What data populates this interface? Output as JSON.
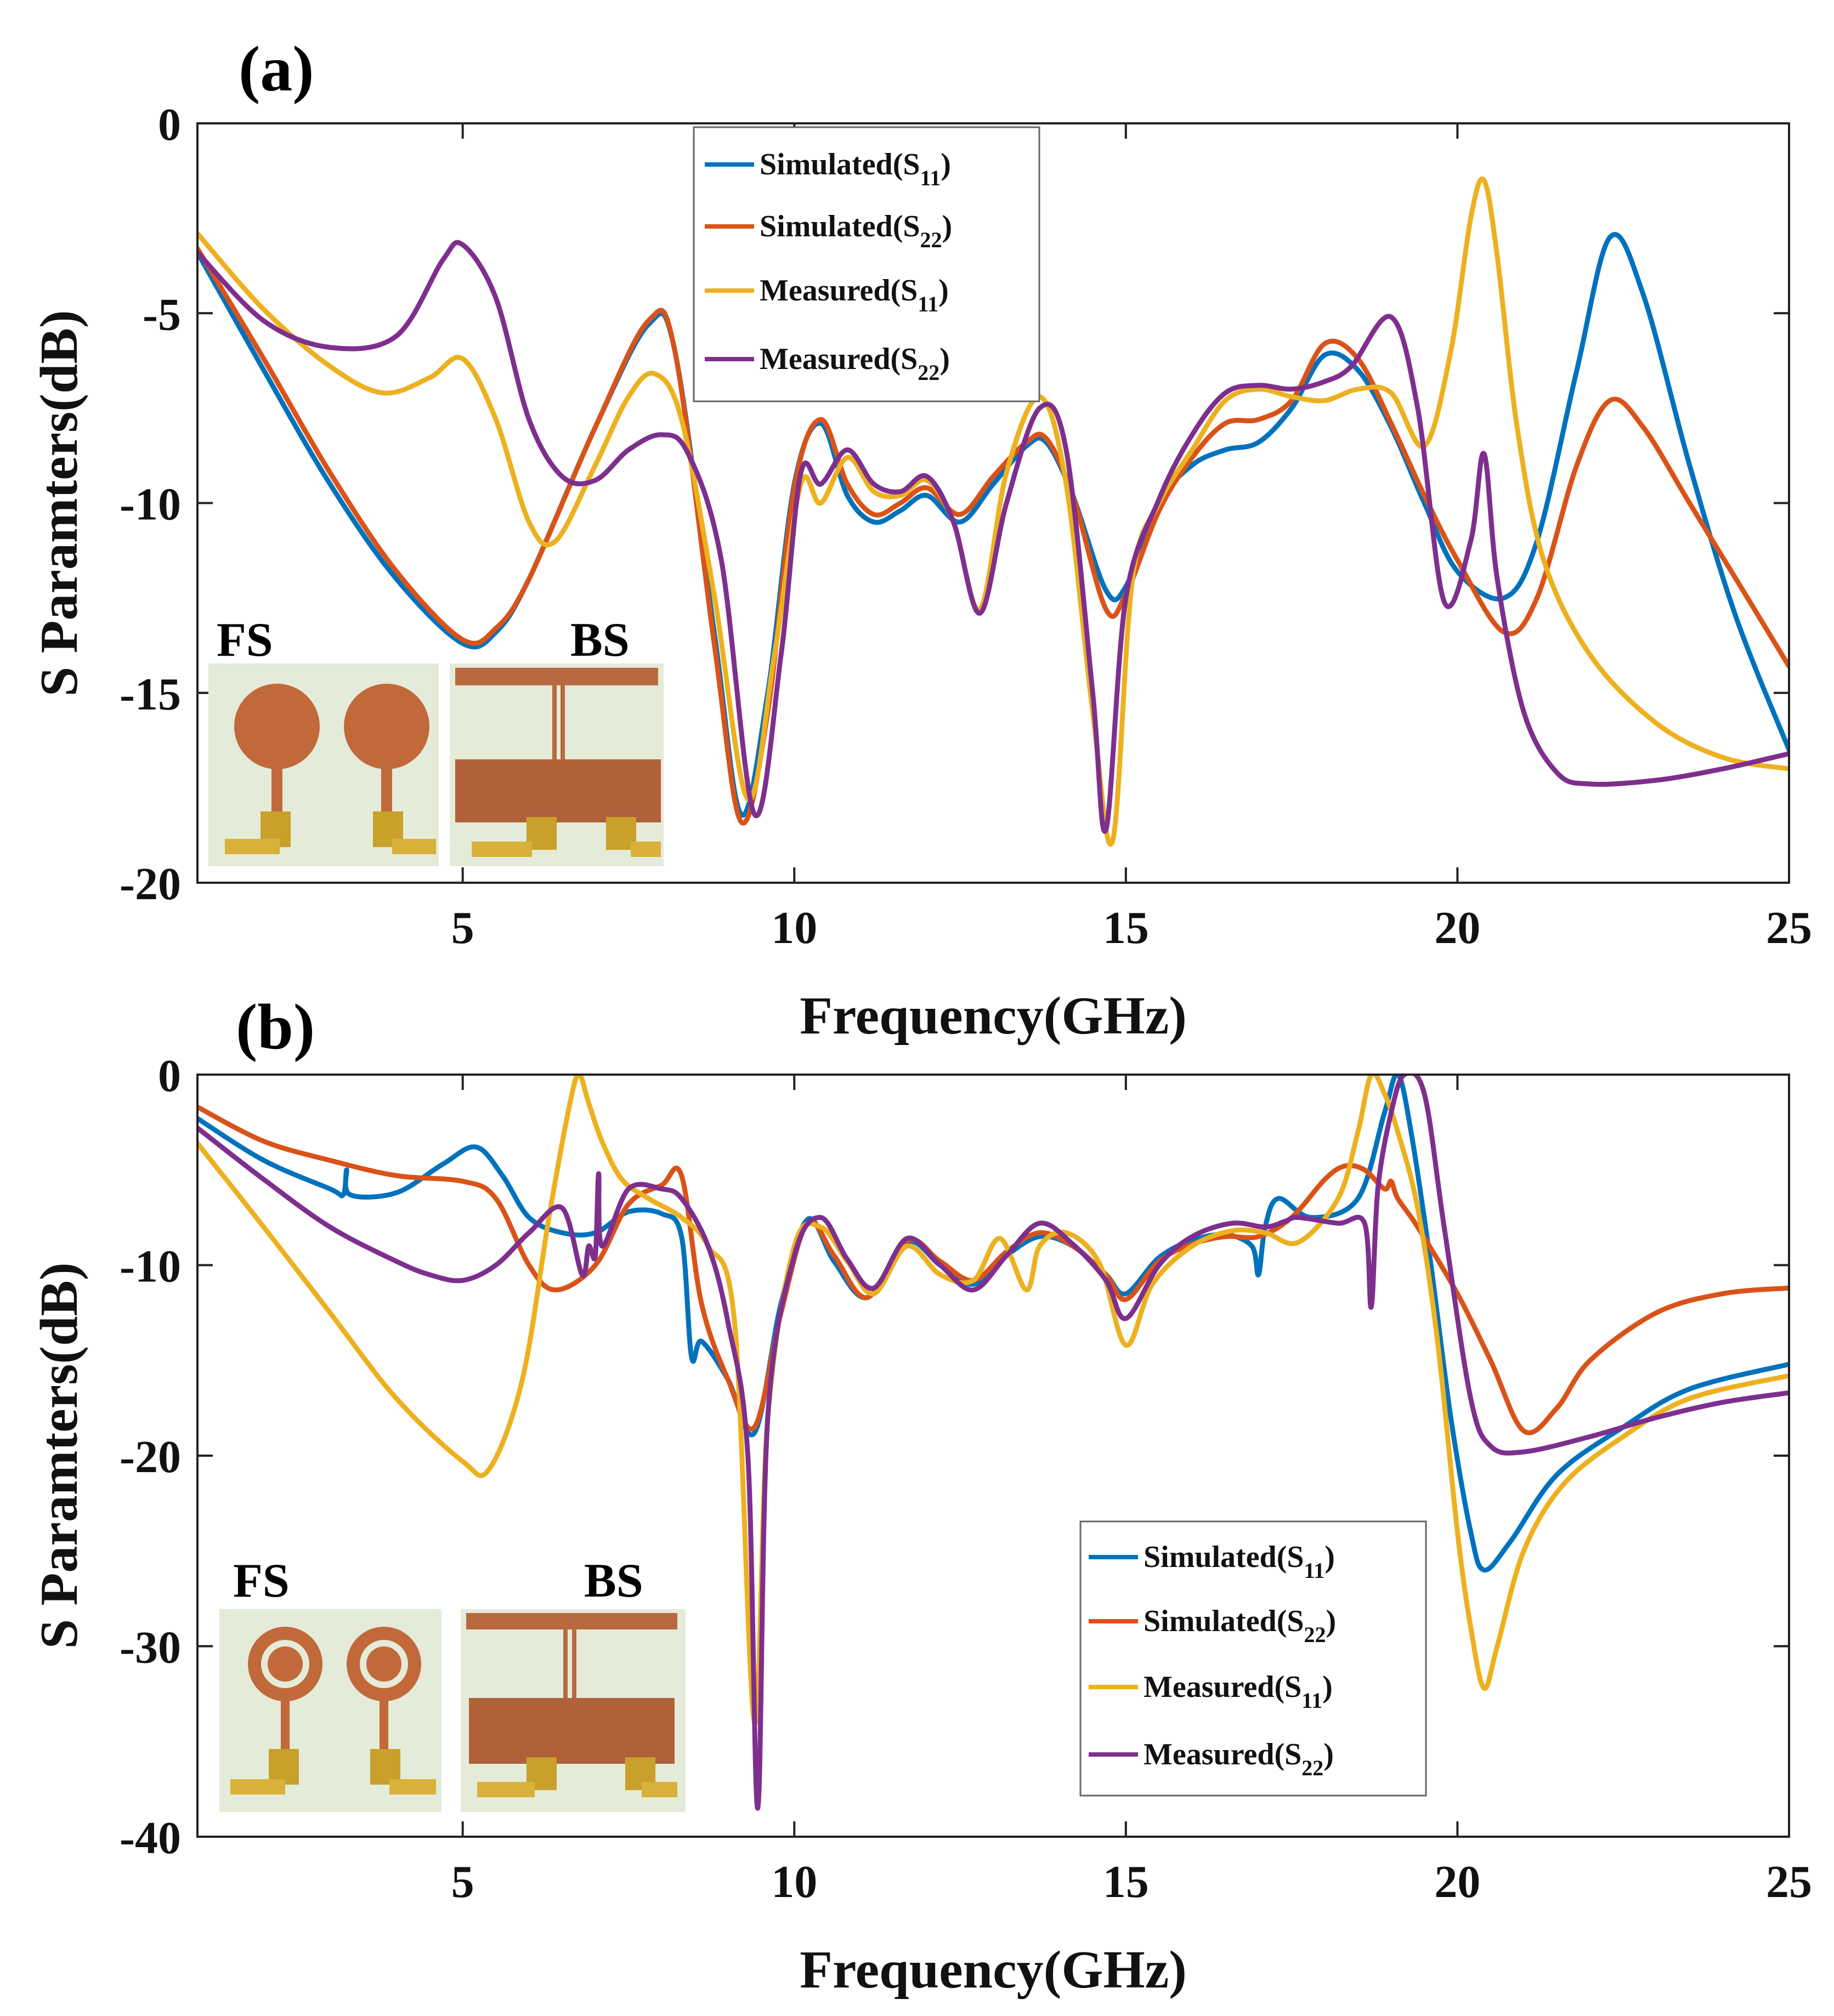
{
  "chart_data": [
    {
      "panel_label": "(a)",
      "type": "line",
      "xlabel": "Frequency(GHz)",
      "ylabel": "S Paramters(dB)",
      "xlim": [
        1,
        25
      ],
      "ylim": [
        -20,
        0
      ],
      "xticks": [
        5,
        10,
        15,
        20,
        25
      ],
      "yticks": [
        0,
        -5,
        -10,
        -15,
        -20
      ],
      "legend_position": "top-center",
      "inset_labels": [
        "FS",
        "BS"
      ],
      "series": [
        {
          "name": "Simulated",
          "sub": "11",
          "color": "#0072BD",
          "x": [
            1,
            2,
            3,
            4,
            5,
            5.5,
            6,
            7,
            7.8,
            8.2,
            8.8,
            9.2,
            9.6,
            10,
            10.4,
            10.8,
            11.2,
            11.6,
            12,
            12.5,
            13,
            13.5,
            13.8,
            14.2,
            14.7,
            15,
            15.5,
            16,
            16.5,
            17,
            17.5,
            18,
            18.5,
            19,
            19.5,
            20,
            20.7,
            21.2,
            21.8,
            22.3,
            22.8,
            23.5,
            24.2,
            25
          ],
          "y": [
            -3.4,
            -6.5,
            -9.5,
            -12,
            -13.7,
            -13.4,
            -12,
            -8,
            -5.3,
            -6,
            -13.5,
            -18.2,
            -15,
            -9.5,
            -7.9,
            -9.8,
            -10.5,
            -10.2,
            -9.8,
            -10.5,
            -9.5,
            -8.5,
            -8.4,
            -9.8,
            -12.3,
            -12.2,
            -10,
            -9,
            -8.6,
            -8.4,
            -7.5,
            -6.1,
            -6.5,
            -8,
            -10,
            -11.8,
            -12.5,
            -11,
            -6.5,
            -3,
            -4.5,
            -9,
            -13,
            -16.5
          ]
        },
        {
          "name": "Simulated",
          "sub": "22",
          "color": "#D95319",
          "x": [
            1,
            2,
            3,
            4,
            5,
            5.5,
            6,
            7,
            7.8,
            8.2,
            8.8,
            9.2,
            9.6,
            10,
            10.4,
            10.8,
            11.2,
            11.6,
            12,
            12.5,
            13,
            13.5,
            13.8,
            14.2,
            14.7,
            15,
            15.5,
            16,
            16.5,
            17,
            17.5,
            18,
            18.5,
            19,
            19.5,
            20,
            20.7,
            21.2,
            21.8,
            22.3,
            22.8,
            23.5,
            24.2,
            25
          ],
          "y": [
            -3.3,
            -6.2,
            -9.2,
            -11.8,
            -13.6,
            -13.3,
            -12,
            -8,
            -5.2,
            -6,
            -13.8,
            -18.4,
            -15.5,
            -9.6,
            -7.8,
            -9.5,
            -10.3,
            -10,
            -9.6,
            -10.3,
            -9.3,
            -8.4,
            -8.3,
            -9.8,
            -12.8,
            -12.4,
            -10.2,
            -8.8,
            -7.9,
            -7.8,
            -7.3,
            -5.8,
            -6.2,
            -7.9,
            -9.8,
            -11.5,
            -13.4,
            -12.5,
            -9,
            -7.3,
            -8,
            -10,
            -12,
            -14.3
          ]
        },
        {
          "name": "Measured",
          "sub": "11",
          "color": "#EDB120",
          "x": [
            1,
            2,
            3,
            3.8,
            4.5,
            5,
            5.5,
            6,
            6.4,
            7,
            7.5,
            7.9,
            8.3,
            8.8,
            9.3,
            9.7,
            10.1,
            10.4,
            10.8,
            11.2,
            11.6,
            12,
            12.4,
            12.8,
            13.2,
            13.7,
            14.1,
            14.5,
            14.8,
            15.1,
            15.5,
            16,
            16.5,
            17,
            17.5,
            18,
            18.5,
            19,
            19.5,
            19.9,
            20.2,
            20.4,
            20.6,
            20.9,
            21.3,
            22,
            23,
            24,
            25
          ],
          "y": [
            -2.9,
            -4.9,
            -6.4,
            -7.1,
            -6.7,
            -6.2,
            -7.8,
            -10.5,
            -11,
            -9,
            -7.2,
            -6.6,
            -7.8,
            -12.5,
            -17.8,
            -14,
            -9.5,
            -10,
            -8.8,
            -9.7,
            -9.8,
            -9.4,
            -10.5,
            -12.8,
            -9.2,
            -7.2,
            -9.5,
            -15.5,
            -18.9,
            -12,
            -10,
            -8.6,
            -7.3,
            -7,
            -7.2,
            -7.3,
            -7,
            -7.1,
            -8.5,
            -6,
            -2.5,
            -1.5,
            -3.5,
            -8,
            -11.5,
            -14,
            -15.8,
            -16.7,
            -17
          ]
        },
        {
          "name": "Measured",
          "sub": "22",
          "color": "#7E2F8E",
          "x": [
            1,
            2,
            3,
            4,
            4.7,
            5,
            5.5,
            6,
            6.5,
            7,
            7.5,
            8,
            8.4,
            8.9,
            9.4,
            9.8,
            10.1,
            10.4,
            10.8,
            11.2,
            11.6,
            12,
            12.4,
            12.8,
            13.2,
            13.7,
            14.1,
            14.5,
            14.7,
            15,
            15.5,
            16,
            16.5,
            17,
            17.5,
            18,
            18.4,
            19,
            19.4,
            19.8,
            20.2,
            20.4,
            20.6,
            21,
            21.5,
            22,
            23,
            24,
            25
          ],
          "y": [
            -3.4,
            -5.2,
            -5.9,
            -5.6,
            -3.6,
            -3.2,
            -4.6,
            -7.8,
            -9.3,
            -9.4,
            -8.6,
            -8.2,
            -8.7,
            -11.5,
            -18.2,
            -14,
            -9.2,
            -9.5,
            -8.6,
            -9.5,
            -9.7,
            -9.3,
            -10.5,
            -12.9,
            -10,
            -7.5,
            -8.6,
            -15,
            -18.6,
            -12.5,
            -9.9,
            -8.2,
            -7.1,
            -6.9,
            -7,
            -6.8,
            -6.4,
            -5.1,
            -7.5,
            -12.6,
            -11,
            -8.7,
            -12,
            -15.5,
            -17.1,
            -17.4,
            -17.3,
            -17,
            -16.6
          ]
        }
      ]
    },
    {
      "panel_label": "(b)",
      "type": "line",
      "xlabel": "Frequency(GHz)",
      "ylabel": "S Paramters(dB)",
      "xlim": [
        1,
        25
      ],
      "ylim": [
        -40,
        0
      ],
      "xticks": [
        5,
        10,
        15,
        20,
        25
      ],
      "yticks": [
        0,
        -10,
        -20,
        -30,
        -40
      ],
      "legend_position": "lower-right",
      "inset_labels": [
        "FS",
        "BS"
      ],
      "series": [
        {
          "name": "Simulated",
          "sub": "11",
          "color": "#0072BD",
          "x": [
            1,
            2,
            3,
            3.2,
            3.25,
            3.3,
            4,
            4.7,
            5.2,
            5.6,
            6,
            6.5,
            7,
            7.5,
            8,
            8.3,
            8.45,
            8.6,
            9,
            9.4,
            9.8,
            10.2,
            10.6,
            11.1,
            11.7,
            12.2,
            12.7,
            13.2,
            13.7,
            14.2,
            14.7,
            15,
            15.5,
            16,
            16.5,
            16.9,
            17,
            17.1,
            17.3,
            17.8,
            18.5,
            18.9,
            19.1,
            19.3,
            19.6,
            19.9,
            20.2,
            20.4,
            20.8,
            21.5,
            22.5,
            23.5,
            25
          ],
          "y": [
            -2.3,
            -4.5,
            -6,
            -6.3,
            -5,
            -6.3,
            -6.2,
            -4.7,
            -3.8,
            -5.3,
            -7.5,
            -8.3,
            -8.3,
            -7.2,
            -7.3,
            -8.5,
            -14.8,
            -14,
            -16,
            -18.8,
            -12,
            -7.6,
            -9.8,
            -11.7,
            -8.8,
            -10,
            -11,
            -9.5,
            -8.5,
            -9,
            -10.5,
            -11.5,
            -9.6,
            -8.7,
            -8.4,
            -9,
            -10.5,
            -8,
            -6.5,
            -7.5,
            -6.5,
            -2,
            0,
            -3,
            -10,
            -18,
            -24,
            -26,
            -24.5,
            -21,
            -18.5,
            -16.5,
            -15.2
          ]
        },
        {
          "name": "Simulated",
          "sub": "22",
          "color": "#D95319",
          "x": [
            1,
            2,
            3,
            4,
            5,
            5.5,
            6,
            6.4,
            7,
            7.5,
            8,
            8.3,
            8.6,
            9,
            9.4,
            9.8,
            10.2,
            10.6,
            11.1,
            11.7,
            12.2,
            12.7,
            13.2,
            13.7,
            14.2,
            14.7,
            15,
            15.5,
            16,
            16.5,
            17,
            17.5,
            18,
            18.3,
            18.6,
            18.9,
            19,
            19.1,
            19.4,
            20,
            20.5,
            21,
            21.5,
            22,
            23,
            24,
            25
          ],
          "y": [
            -1.7,
            -3.5,
            -4.5,
            -5.3,
            -5.6,
            -6.5,
            -10,
            -11.3,
            -10,
            -6.8,
            -5.8,
            -5.3,
            -12,
            -16,
            -18.5,
            -12.5,
            -7.8,
            -9.5,
            -11.7,
            -8.7,
            -9.8,
            -10.8,
            -9.3,
            -8.3,
            -9,
            -10.5,
            -11.8,
            -9.8,
            -8.9,
            -8.5,
            -8.5,
            -7.5,
            -5.5,
            -4.8,
            -5,
            -6,
            -5.6,
            -6.5,
            -8,
            -11.5,
            -15,
            -18.7,
            -17.5,
            -15,
            -12.5,
            -11.5,
            -11.2
          ]
        },
        {
          "name": "Measured",
          "sub": "11",
          "color": "#EDB120",
          "x": [
            1,
            2,
            3,
            4,
            5,
            5.4,
            5.9,
            6.3,
            6.6,
            6.75,
            6.9,
            7.1,
            7.4,
            7.8,
            8.3,
            8.7,
            9.1,
            9.4,
            9.6,
            10,
            10.4,
            10.8,
            11.2,
            11.7,
            12.2,
            12.7,
            13.1,
            13.5,
            13.7,
            14.1,
            14.6,
            15,
            15.4,
            16,
            16.6,
            17.1,
            17.6,
            18.2,
            18.5,
            18.7,
            18.9,
            19.1,
            19.4,
            19.7,
            20,
            20.2,
            20.4,
            20.6,
            21,
            21.6,
            22.5,
            23.5,
            25
          ],
          "y": [
            -3.6,
            -8,
            -12.5,
            -17,
            -20.3,
            -20.7,
            -16,
            -7.5,
            -1.8,
            0,
            -1.5,
            -3.5,
            -5.5,
            -6.5,
            -7.5,
            -9,
            -13,
            -34,
            -18,
            -9,
            -8,
            -9.8,
            -11.5,
            -9,
            -10.5,
            -10.8,
            -8.6,
            -11.3,
            -9,
            -8.3,
            -9.9,
            -14.2,
            -11,
            -9,
            -8.2,
            -8.3,
            -8.8,
            -6.5,
            -3,
            0,
            -1,
            -3,
            -7,
            -14,
            -24,
            -29,
            -32.2,
            -30,
            -25,
            -21.5,
            -19,
            -17,
            -15.8
          ]
        },
        {
          "name": "Measured",
          "sub": "22",
          "color": "#7E2F8E",
          "x": [
            1,
            2,
            3,
            4,
            4.5,
            5,
            5.5,
            6,
            6.5,
            6.8,
            6.9,
            7,
            7.05,
            7.1,
            7.5,
            8,
            8.3,
            8.7,
            9,
            9.3,
            9.45,
            9.6,
            10,
            10.4,
            10.8,
            11.2,
            11.7,
            12.2,
            12.7,
            13.2,
            13.7,
            14.2,
            14.7,
            15,
            15.5,
            16,
            16.6,
            17.1,
            17.4,
            17.6,
            18.2,
            18.6,
            18.7,
            18.8,
            19,
            19.2,
            19.5,
            19.8,
            20.2,
            20.5,
            21,
            22,
            23,
            24,
            25
          ],
          "y": [
            -2.8,
            -5.5,
            -8,
            -9.8,
            -10.5,
            -10.8,
            -10,
            -8.3,
            -7,
            -10.5,
            -9,
            -9.5,
            -5.2,
            -9,
            -6,
            -6,
            -6.5,
            -9,
            -13,
            -20,
            -38.5,
            -18,
            -9.5,
            -7.5,
            -9.7,
            -11.2,
            -8.6,
            -10,
            -11.3,
            -9.5,
            -7.8,
            -8.9,
            -10.8,
            -12.8,
            -10,
            -8.5,
            -7.8,
            -8,
            -7.7,
            -7.5,
            -7.8,
            -7.8,
            -12.2,
            -6,
            -2,
            0,
            -1,
            -8,
            -17,
            -19.5,
            -19.8,
            -19,
            -18,
            -17.2,
            -16.7
          ]
        }
      ]
    }
  ]
}
